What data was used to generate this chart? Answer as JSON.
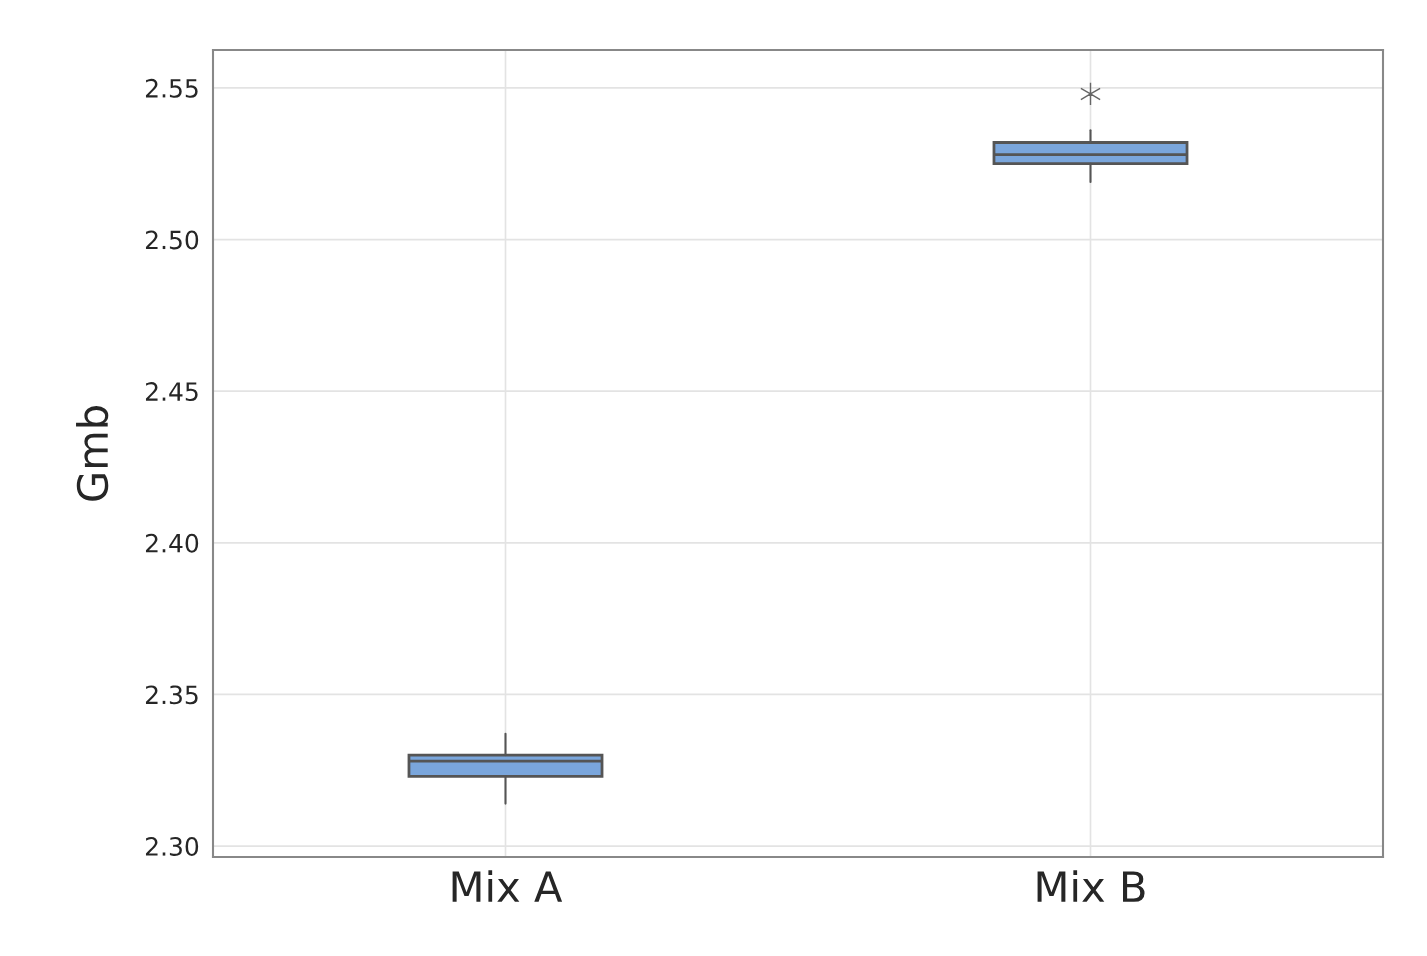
{
  "chart_data": {
    "type": "box",
    "ylabel": "Gmb",
    "categories": [
      "Mix A",
      "Mix B"
    ],
    "boxes": [
      {
        "low": 2.314,
        "q1": 2.323,
        "median": 2.328,
        "q3": 2.33,
        "high": 2.337
      },
      {
        "low": 2.519,
        "q1": 2.525,
        "median": 2.528,
        "q3": 2.532,
        "high": 2.536,
        "outliers": [
          2.548
        ]
      }
    ],
    "color": "#7aa6dc",
    "ylim": [
      2.2964,
      2.5625
    ],
    "yticks": [
      {
        "value": 2.3,
        "label": "2.30"
      },
      {
        "value": 2.35,
        "label": "2.35"
      },
      {
        "value": 2.4,
        "label": "2.40"
      },
      {
        "value": 2.45,
        "label": "2.45"
      },
      {
        "value": 2.5,
        "label": "2.50"
      },
      {
        "value": 2.55,
        "label": "2.55"
      }
    ],
    "grid": true,
    "marker": "star"
  }
}
